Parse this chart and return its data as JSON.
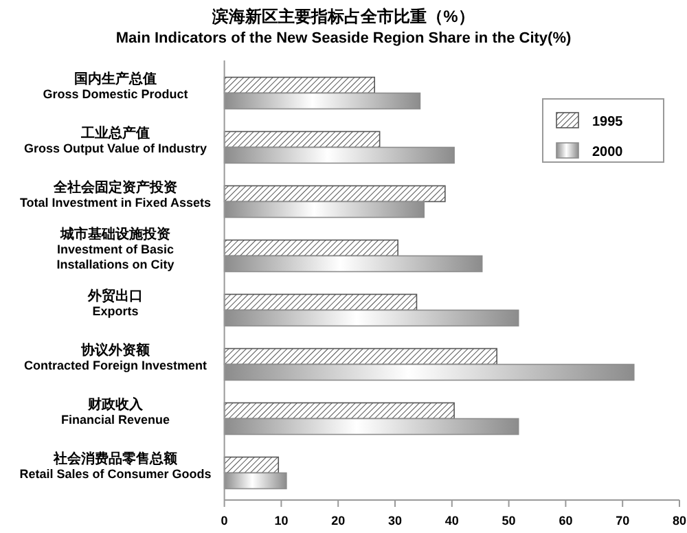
{
  "chart_data": {
    "type": "bar",
    "orientation": "horizontal",
    "title": "滨海新区主要指标占全市比重（%）",
    "subtitle": "Main Indicators of the New Seaside Region Share in the City(%)",
    "categories": [
      "国内生产总值\nGross Domestic Product",
      "工业总产值\nGross Output Value of Industry",
      "全社会固定资产投资\nTotal Investment in Fixed Assets",
      "城市基础设施投资\nInvestment of Basic\nInstallations on City",
      "外贸出口\nExports",
      "协议外资额\nContracted Foreign Investment",
      "财政收入\nFinancial Revenue",
      "社会消费品零售总额\nRetail Sales of Consumer Goods"
    ],
    "series": [
      {
        "name": "1995",
        "color": "#555555",
        "values": [
          26.4,
          27.3,
          38.8,
          30.5,
          33.8,
          47.9,
          40.4,
          9.5
        ]
      },
      {
        "name": "2000",
        "color": "#8c8c8c",
        "values": [
          34.4,
          40.4,
          35.1,
          45.3,
          51.7,
          72.0,
          51.7,
          10.9
        ]
      }
    ],
    "xlim": [
      0,
      80
    ],
    "xticks": [
      0,
      10,
      20,
      30,
      40,
      50,
      60,
      70,
      80
    ],
    "legend": "top right",
    "grid": false
  }
}
